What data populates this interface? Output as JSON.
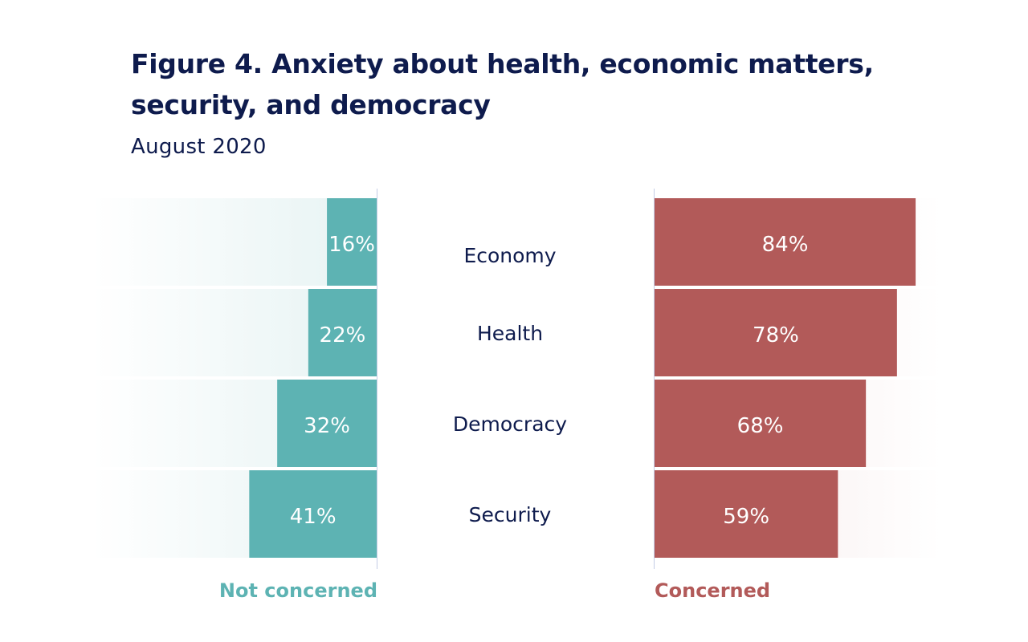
{
  "title": "Figure 4. Anxiety about health, economic matters, security, and democracy",
  "subtitle": "August 2020",
  "legend": {
    "left": "Not concerned",
    "right": "Concerned"
  },
  "colors": {
    "not_concerned": "#5db3b3",
    "concerned": "#b25a59",
    "text_dark": "#0e1b4d"
  },
  "chart_data": {
    "type": "bar",
    "orientation": "horizontal-diverging",
    "categories": [
      "Economy",
      "Health",
      "Democracy",
      "Security"
    ],
    "series": [
      {
        "name": "Not concerned",
        "values": [
          16,
          22,
          32,
          41
        ],
        "labels": [
          "16%",
          "22%",
          "32%",
          "41%"
        ]
      },
      {
        "name": "Concerned",
        "values": [
          84,
          78,
          68,
          59
        ],
        "labels": [
          "84%",
          "78%",
          "68%",
          "59%"
        ]
      }
    ],
    "unit": "%",
    "xlim": [
      0,
      100
    ],
    "grid": false
  }
}
